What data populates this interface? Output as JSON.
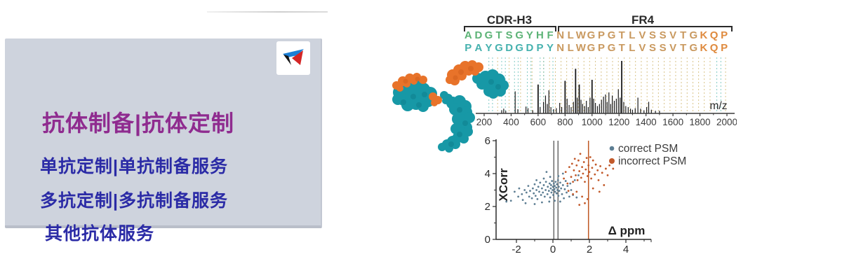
{
  "left_panel": {
    "title": "抗体制备|抗体定制",
    "items": [
      "单抗定制|单抗制备服务",
      "多抗定制|多抗制备服务",
      "其他抗体服务"
    ],
    "colors": {
      "panel_bg": "#ced3dd",
      "title": "#8f2b8f",
      "item": "#2b2ba6",
      "logo_blue": "#1b7fd6",
      "logo_black": "#141414",
      "logo_red": "#d42525"
    }
  },
  "figure": {
    "alignment": {
      "cdr_label": "CDR-H3",
      "fr4_label": "FR4",
      "rows": [
        {
          "segments": [
            {
              "text": "ADGTSGYHF",
              "color": "#5cb376"
            },
            {
              "text": "NLWGPGTLVSSVTG",
              "color": "#c9995f"
            },
            {
              "text": "KQP",
              "color": "#df8a3e"
            }
          ]
        },
        {
          "segments": [
            {
              "text": "PAYGDGDPY",
              "color": "#45b1ae"
            },
            {
              "text": "NLWGPGTLVSSVTG",
              "color": "#c9995f"
            },
            {
              "text": "KQP",
              "color": "#df8a3e"
            }
          ]
        }
      ]
    }
  },
  "chart_data": [
    {
      "type": "bar",
      "title": "MS/MS fragment spectrum",
      "xlabel": "m/z",
      "ylabel": "",
      "xlim": [
        150,
        2070
      ],
      "xticks": [
        200,
        400,
        600,
        800,
        1000,
        1200,
        1400,
        1600,
        1800,
        2000
      ],
      "grid": false,
      "colors": {
        "peak": "#1a1a1a",
        "axis": "#3a3a3a",
        "teal_line": "#82cbc6",
        "tan_line": "#d9c489"
      },
      "fragment_lines": {
        "teal": [
          235,
          262,
          330,
          357,
          425,
          452,
          520,
          547,
          615,
          642,
          710,
          1925,
          1955
        ],
        "tan": [
          300,
          385,
          470,
          555,
          640,
          685,
          728,
          770,
          812,
          855,
          898,
          940,
          982,
          1025,
          1068,
          1110,
          1152,
          1195,
          1238,
          1280,
          1322,
          1365,
          1408,
          1450,
          1492,
          1535,
          1578,
          1620,
          1662,
          1705,
          1748,
          1790,
          1832,
          1875,
          1990
        ]
      },
      "peaks": [
        [
          330,
          0.06
        ],
        [
          345,
          0.09
        ],
        [
          360,
          0.05
        ],
        [
          430,
          0.42
        ],
        [
          450,
          0.08
        ],
        [
          510,
          0.13
        ],
        [
          525,
          0.1
        ],
        [
          560,
          0.06
        ],
        [
          600,
          0.55
        ],
        [
          615,
          0.12
        ],
        [
          640,
          0.22
        ],
        [
          655,
          0.34
        ],
        [
          668,
          0.18
        ],
        [
          680,
          0.44
        ],
        [
          695,
          0.12
        ],
        [
          715,
          0.08
        ],
        [
          735,
          0.1
        ],
        [
          760,
          0.2
        ],
        [
          775,
          0.12
        ],
        [
          800,
          0.62
        ],
        [
          815,
          0.28
        ],
        [
          830,
          0.16
        ],
        [
          845,
          0.12
        ],
        [
          862,
          0.22
        ],
        [
          878,
          0.85
        ],
        [
          890,
          0.3
        ],
        [
          905,
          0.55
        ],
        [
          918,
          0.26
        ],
        [
          930,
          0.18
        ],
        [
          945,
          0.14
        ],
        [
          958,
          0.24
        ],
        [
          972,
          0.12
        ],
        [
          985,
          0.3
        ],
        [
          1000,
          0.64
        ],
        [
          1012,
          0.28
        ],
        [
          1025,
          0.2
        ],
        [
          1040,
          0.14
        ],
        [
          1055,
          0.18
        ],
        [
          1070,
          0.26
        ],
        [
          1085,
          0.32
        ],
        [
          1100,
          0.36
        ],
        [
          1112,
          0.22
        ],
        [
          1125,
          0.4
        ],
        [
          1138,
          0.18
        ],
        [
          1150,
          0.34
        ],
        [
          1165,
          0.24
        ],
        [
          1180,
          0.28
        ],
        [
          1195,
          0.46
        ],
        [
          1208,
          0.3
        ],
        [
          1220,
          1.0
        ],
        [
          1235,
          0.22
        ],
        [
          1250,
          0.14
        ],
        [
          1268,
          0.12
        ],
        [
          1285,
          0.09
        ],
        [
          1300,
          0.07
        ],
        [
          1320,
          0.1
        ],
        [
          1340,
          0.3
        ],
        [
          1360,
          0.09
        ],
        [
          1385,
          0.06
        ],
        [
          1405,
          0.12
        ],
        [
          1420,
          0.22
        ],
        [
          1440,
          0.07
        ],
        [
          1470,
          0.05
        ],
        [
          1500,
          0.05
        ]
      ]
    },
    {
      "type": "scatter",
      "title": "PSM score vs mass error",
      "xlabel": "Δ ppm",
      "ylabel": "XCorr",
      "xlim": [
        -3.1,
        5.3
      ],
      "ylim": [
        0,
        6
      ],
      "xticks": [
        -2,
        0,
        2,
        4
      ],
      "yticks": [
        0,
        2,
        4,
        6
      ],
      "grid": false,
      "legend_position": "top-right",
      "vlines": [
        {
          "x": 0.05,
          "color": "#6a6a6a"
        },
        {
          "x": 0.28,
          "color": "#6a6a6a"
        },
        {
          "x": 1.95,
          "color": "#bf5722"
        }
      ],
      "series": [
        {
          "name": "correct PSM",
          "color": "#5d7e93",
          "points": [
            [
              -2.55,
              2.3
            ],
            [
              -2.3,
              2.35
            ],
            [
              -2.1,
              2.9
            ],
            [
              -1.9,
              2.6
            ],
            [
              -1.85,
              3.1
            ],
            [
              -1.7,
              2.75
            ],
            [
              -1.65,
              2.4
            ],
            [
              -1.55,
              3.0
            ],
            [
              -1.5,
              2.2
            ],
            [
              -1.45,
              2.85
            ],
            [
              -1.35,
              3.25
            ],
            [
              -1.3,
              2.6
            ],
            [
              -1.25,
              2.95
            ],
            [
              -1.15,
              2.5
            ],
            [
              -1.1,
              3.1
            ],
            [
              -1.05,
              2.8
            ],
            [
              -1.0,
              3.35
            ],
            [
              -1.0,
              2.15
            ],
            [
              -0.95,
              2.65
            ],
            [
              -0.9,
              3.0
            ],
            [
              -0.9,
              3.6
            ],
            [
              -0.85,
              2.45
            ],
            [
              -0.8,
              3.2
            ],
            [
              -0.75,
              2.9
            ],
            [
              -0.7,
              3.45
            ],
            [
              -0.65,
              2.7
            ],
            [
              -0.6,
              3.1
            ],
            [
              -0.6,
              2.25
            ],
            [
              -0.55,
              2.85
            ],
            [
              -0.5,
              3.3
            ],
            [
              -0.5,
              3.7
            ],
            [
              -0.45,
              2.6
            ],
            [
              -0.4,
              3.0
            ],
            [
              -0.38,
              3.5
            ],
            [
              -0.35,
              4.1
            ],
            [
              -0.3,
              2.75
            ],
            [
              -0.28,
              3.2
            ],
            [
              -0.22,
              2.95
            ],
            [
              -0.2,
              2.3
            ],
            [
              -0.18,
              3.4
            ],
            [
              -0.15,
              2.55
            ],
            [
              -0.15,
              3.8
            ],
            [
              -0.12,
              3.1
            ],
            [
              -0.1,
              3.3
            ],
            [
              -0.08,
              2.85
            ],
            [
              -0.05,
              3.55
            ],
            [
              -0.02,
              3.0
            ],
            [
              0.0,
              3.2
            ],
            [
              0.02,
              2.7
            ],
            [
              0.05,
              3.4
            ],
            [
              0.08,
              3.05
            ],
            [
              0.1,
              3.25
            ],
            [
              0.1,
              2.35
            ],
            [
              0.12,
              2.9
            ],
            [
              0.15,
              3.5
            ],
            [
              0.18,
              3.15
            ],
            [
              0.2,
              2.8
            ],
            [
              0.22,
              3.35
            ],
            [
              0.25,
              3.0
            ],
            [
              0.28,
              3.6
            ],
            [
              0.3,
              2.65
            ],
            [
              0.3,
              3.85
            ],
            [
              0.32,
              3.2
            ],
            [
              0.35,
              2.95
            ],
            [
              0.4,
              3.45
            ],
            [
              0.4,
              2.3
            ],
            [
              0.45,
              3.1
            ],
            [
              0.5,
              2.75
            ],
            [
              0.55,
              3.3
            ],
            [
              0.55,
              4.0
            ],
            [
              0.6,
              2.5
            ],
            [
              0.65,
              3.05
            ],
            [
              0.7,
              3.55
            ],
            [
              0.75,
              2.85
            ],
            [
              0.8,
              3.25
            ],
            [
              0.9,
              2.6
            ],
            [
              0.95,
              3.4
            ],
            [
              1.0,
              3.0
            ],
            [
              1.1,
              2.7
            ],
            [
              1.2,
              3.6
            ],
            [
              1.3,
              2.55
            ],
            [
              1.4,
              3.9
            ]
          ]
        },
        {
          "name": "incorrect PSM",
          "color": "#c2592a",
          "points": [
            [
              0.6,
              3.7
            ],
            [
              0.7,
              4.1
            ],
            [
              0.8,
              3.4
            ],
            [
              0.85,
              2.95
            ],
            [
              0.9,
              4.4
            ],
            [
              1.0,
              3.8
            ],
            [
              1.05,
              4.6
            ],
            [
              1.1,
              3.5
            ],
            [
              1.1,
              2.75
            ],
            [
              1.15,
              4.2
            ],
            [
              1.2,
              4.9
            ],
            [
              1.25,
              3.9
            ],
            [
              1.3,
              4.5
            ],
            [
              1.3,
              2.9
            ],
            [
              1.35,
              3.6
            ],
            [
              1.4,
              4.8
            ],
            [
              1.45,
              4.15
            ],
            [
              1.45,
              2.1
            ],
            [
              1.5,
              5.2
            ],
            [
              1.55,
              3.75
            ],
            [
              1.6,
              4.4
            ],
            [
              1.6,
              2.6
            ],
            [
              1.65,
              4.0
            ],
            [
              1.7,
              4.7
            ],
            [
              1.75,
              3.5
            ],
            [
              1.75,
              2.2
            ],
            [
              1.8,
              4.25
            ],
            [
              1.85,
              4.95
            ],
            [
              1.9,
              3.85
            ],
            [
              1.9,
              2.45
            ],
            [
              1.95,
              4.5
            ],
            [
              2.0,
              4.1
            ],
            [
              2.05,
              5.0
            ],
            [
              2.1,
              3.7
            ],
            [
              2.15,
              4.35
            ],
            [
              2.2,
              4.8
            ],
            [
              2.2,
              3.1
            ],
            [
              2.3,
              3.95
            ],
            [
              2.35,
              4.55
            ],
            [
              2.45,
              4.2
            ],
            [
              2.5,
              3.6
            ],
            [
              2.55,
              2.9
            ],
            [
              2.6,
              4.45
            ],
            [
              2.7,
              4.05
            ],
            [
              2.8,
              3.3
            ],
            [
              2.9,
              4.3
            ],
            [
              3.0,
              3.9
            ],
            [
              3.1,
              4.5
            ],
            [
              3.3,
              4.3
            ]
          ]
        }
      ],
      "legend": [
        {
          "label": "correct PSM",
          "color": "#5d7e93"
        },
        {
          "label": "incorrect PSM",
          "color": "#c2592a"
        }
      ]
    }
  ]
}
